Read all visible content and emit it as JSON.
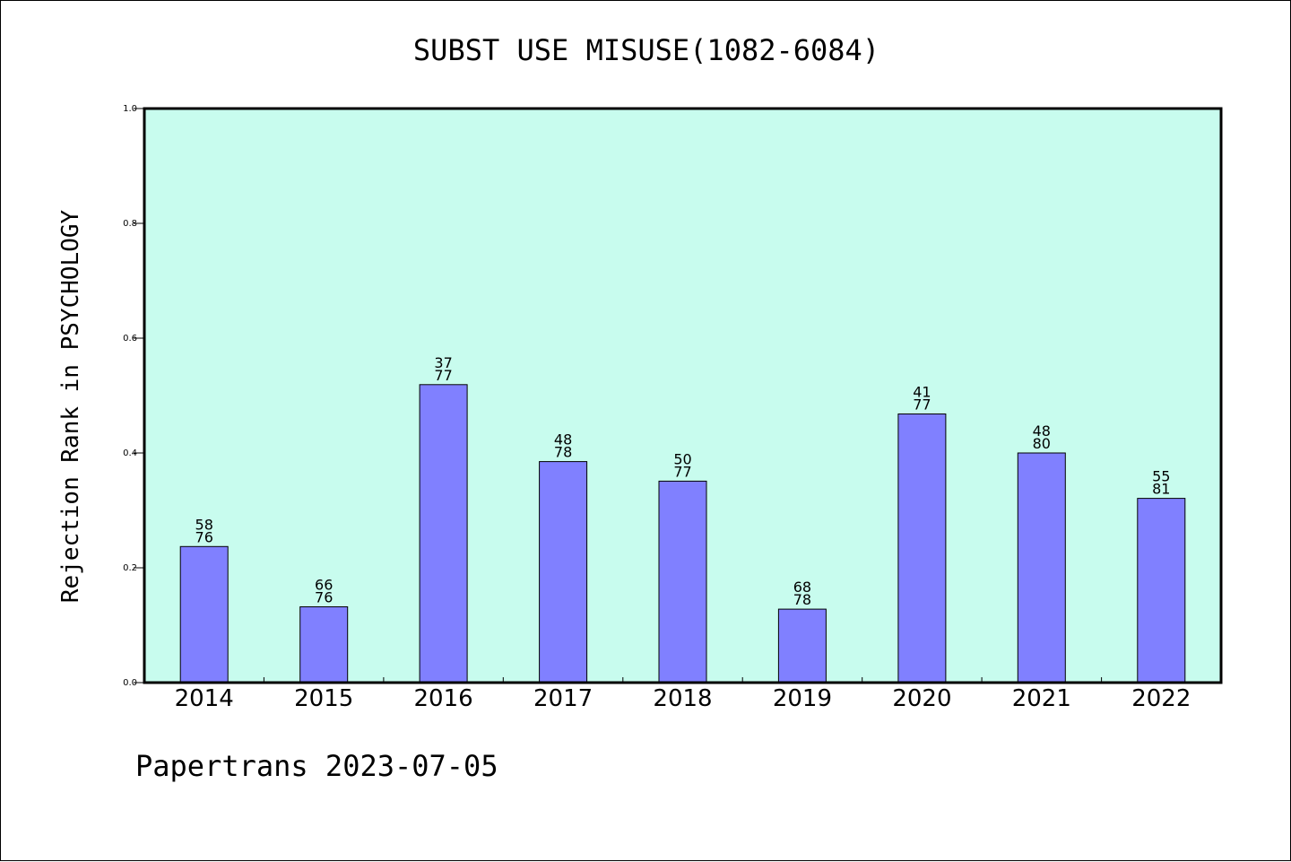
{
  "chart_data": {
    "type": "bar",
    "title": "SUBST USE MISUSE(1082-6084)",
    "ylabel": "Rejection Rank in PSYCHOLOGY",
    "xlabel": "",
    "categories": [
      "2014",
      "2015",
      "2016",
      "2017",
      "2018",
      "2019",
      "2020",
      "2021",
      "2022"
    ],
    "values": [
      0.237,
      0.132,
      0.519,
      0.385,
      0.351,
      0.128,
      0.468,
      0.4,
      0.321
    ],
    "bar_labels": [
      [
        "58",
        "76"
      ],
      [
        "66",
        "76"
      ],
      [
        "37",
        "77"
      ],
      [
        "48",
        "78"
      ],
      [
        "50",
        "77"
      ],
      [
        "68",
        "78"
      ],
      [
        "41",
        "77"
      ],
      [
        "48",
        "80"
      ],
      [
        "55",
        "81"
      ]
    ],
    "ylim": [
      0,
      1
    ],
    "yticks": [
      "0.0",
      "0.2",
      "0.4",
      "0.6",
      "0.8",
      "1.0"
    ],
    "grid": false,
    "legend": "none",
    "colors": {
      "plot_background": "#c8fcee",
      "bar_fill": "#8080ff",
      "bar_edge": "#000000",
      "axis": "#000000"
    },
    "footer": "Papertrans 2023-07-05"
  }
}
